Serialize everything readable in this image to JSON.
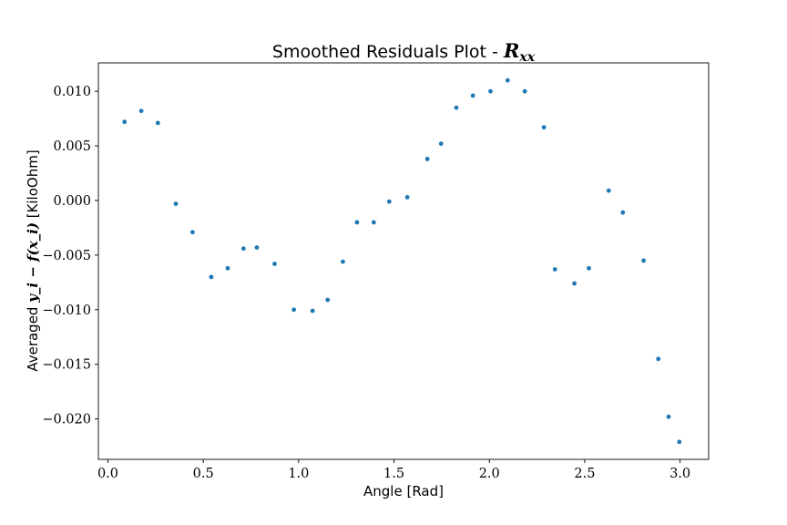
{
  "chart_data": {
    "type": "scatter",
    "title": "Smoothed Residuals Plot - ",
    "title_math": "R",
    "title_math_sub": "xx",
    "xlabel": "Angle [Rad]",
    "ylabel_prefix": "Averaged ",
    "ylabel_math": "y_i − f(x_i)",
    "ylabel_suffix": " [KiloOhm]",
    "xlim": [
      -0.05,
      3.15
    ],
    "ylim": [
      -0.0237,
      0.0126
    ],
    "x_ticks": [
      0.0,
      0.5,
      1.0,
      1.5,
      2.0,
      2.5,
      3.0
    ],
    "x_tick_labels": [
      "0.0",
      "0.5",
      "1.0",
      "1.5",
      "2.0",
      "2.5",
      "3.0"
    ],
    "y_ticks": [
      0.01,
      0.005,
      0.0,
      -0.005,
      -0.01,
      -0.015,
      -0.02
    ],
    "y_tick_labels": [
      "0.010",
      "0.005",
      "0.000",
      "−0.005",
      "−0.010",
      "−0.015",
      "−0.020"
    ],
    "grid": false,
    "legend": "none",
    "marker_color": "#1f77b4",
    "points": [
      {
        "x": 0.087,
        "y": 0.0072
      },
      {
        "x": 0.175,
        "y": 0.0082
      },
      {
        "x": 0.262,
        "y": 0.0071
      },
      {
        "x": 0.356,
        "y": -0.0003
      },
      {
        "x": 0.444,
        "y": -0.0029
      },
      {
        "x": 0.542,
        "y": -0.007
      },
      {
        "x": 0.628,
        "y": -0.0062
      },
      {
        "x": 0.711,
        "y": -0.0044
      },
      {
        "x": 0.781,
        "y": -0.0043
      },
      {
        "x": 0.874,
        "y": -0.0058
      },
      {
        "x": 0.975,
        "y": -0.01
      },
      {
        "x": 1.073,
        "y": -0.0101
      },
      {
        "x": 1.152,
        "y": -0.0091
      },
      {
        "x": 1.232,
        "y": -0.0056
      },
      {
        "x": 1.306,
        "y": -0.002
      },
      {
        "x": 1.394,
        "y": -0.002
      },
      {
        "x": 1.475,
        "y": -0.0001
      },
      {
        "x": 1.57,
        "y": 0.0003
      },
      {
        "x": 1.675,
        "y": 0.0038
      },
      {
        "x": 1.747,
        "y": 0.0052
      },
      {
        "x": 1.827,
        "y": 0.0085
      },
      {
        "x": 1.914,
        "y": 0.0096
      },
      {
        "x": 2.006,
        "y": 0.01
      },
      {
        "x": 2.096,
        "y": 0.011
      },
      {
        "x": 2.186,
        "y": 0.01
      },
      {
        "x": 2.286,
        "y": 0.0067
      },
      {
        "x": 2.344,
        "y": -0.0063
      },
      {
        "x": 2.446,
        "y": -0.0076
      },
      {
        "x": 2.522,
        "y": -0.0062
      },
      {
        "x": 2.626,
        "y": 0.0009
      },
      {
        "x": 2.7,
        "y": -0.0011
      },
      {
        "x": 2.809,
        "y": -0.0055
      },
      {
        "x": 2.886,
        "y": -0.0145
      },
      {
        "x": 2.94,
        "y": -0.0198
      },
      {
        "x": 2.996,
        "y": -0.0221
      }
    ]
  }
}
